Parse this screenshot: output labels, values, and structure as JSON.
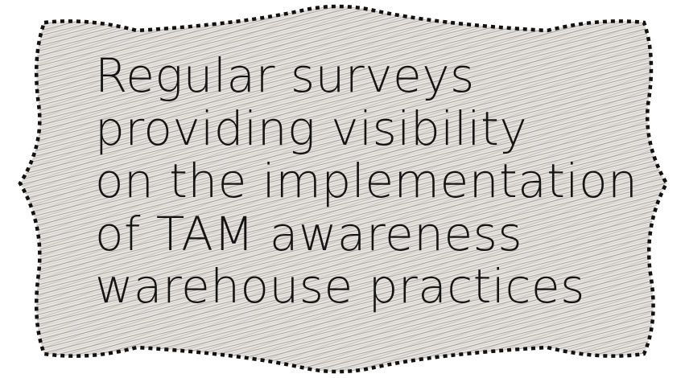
{
  "card": {
    "lines": [
      "Regular surveys",
      "providing visibility",
      "on the implementation",
      "of TAM awareness",
      "warehouse practices"
    ]
  },
  "colors": {
    "background": "#ffffff",
    "card_fill": "#e6e3e0",
    "hatch": "#b0aca8",
    "border": "#111111",
    "text": "#141414"
  }
}
